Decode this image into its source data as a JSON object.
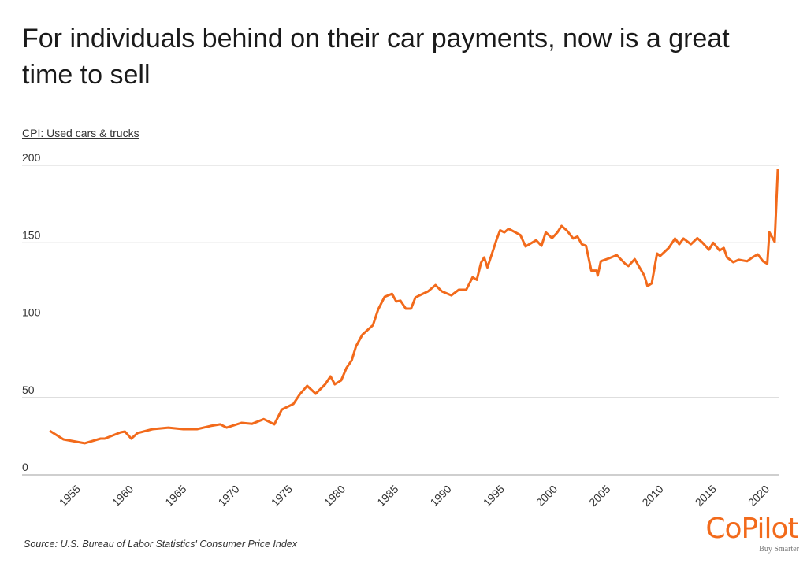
{
  "title": "For individuals behind on their car payments, now is a great time to sell",
  "source": "Source:  U.S. Bureau of Labor Statistics' Consumer Price Index",
  "logo": {
    "name": "CoPilot",
    "tagline": "Buy Smarter",
    "color": "#f26a1b"
  },
  "chart_data": {
    "type": "line",
    "title": "For individuals behind on their car payments, now is a great time to sell",
    "ylabel": "CPI: Used cars & trucks",
    "xlabel": "",
    "ylim": [
      0,
      200
    ],
    "yticks": [
      "0",
      "50",
      "100",
      "150",
      "200"
    ],
    "xticks": [
      "1955",
      "1960",
      "1965",
      "1970",
      "1975",
      "1980",
      "1985",
      "1990",
      "1995",
      "2000",
      "2005",
      "2010",
      "2015",
      "2020"
    ],
    "grid": true,
    "line_color": "#f26a1b",
    "series": [
      {
        "x": [
          1953.0,
          1954.3,
          1956.3,
          1957.8,
          1958.2,
          1959.7,
          1960.1,
          1960.7,
          1961.3,
          1962.7,
          1964.2,
          1965.6,
          1966.9,
          1968.2,
          1969.1,
          1969.7,
          1971.1,
          1972.1,
          1973.2,
          1974.2,
          1974.9,
          1976.0,
          1976.6,
          1977.3,
          1978.1,
          1979.0,
          1979.5,
          1979.9,
          1980.5,
          1981.0,
          1981.5,
          1981.9,
          1982.5,
          1983.5,
          1984.0,
          1984.6,
          1985.3,
          1985.7,
          1986.1,
          1986.6,
          1987.1,
          1987.5,
          1987.9,
          1988.7,
          1989.4,
          1990.0,
          1990.9,
          1991.6,
          1992.3,
          1992.9,
          1993.3,
          1993.7,
          1994.0,
          1994.3,
          1995.2,
          1995.5,
          1995.9,
          1996.3,
          1997.4,
          1997.9,
          1998.9,
          1999.4,
          1999.8,
          2000.4,
          2000.9,
          2001.3,
          2001.8,
          2002.4,
          2002.8,
          2003.2,
          2003.6,
          2004.1,
          2004.6,
          2004.7,
          2005.0,
          2005.8,
          2006.5,
          2007.3,
          2007.6,
          2008.2,
          2009.1,
          2009.4,
          2009.8,
          2010.3,
          2010.6,
          2011.4,
          2012.0,
          2012.4,
          2012.8,
          2013.5,
          2014.1,
          2014.6,
          2015.2,
          2015.6,
          2016.2,
          2016.6,
          2016.9,
          2017.5,
          2018.0,
          2018.8,
          2019.3,
          2019.8,
          2020.3,
          2020.7,
          2020.9,
          2021.4,
          2021.7
        ],
        "y": [
          28.5,
          22.9,
          20.4,
          23.4,
          23.4,
          27.5,
          28.0,
          23.4,
          27.0,
          29.5,
          30.5,
          29.5,
          29.5,
          31.6,
          32.6,
          30.5,
          33.6,
          33.0,
          36.0,
          32.6,
          42.2,
          45.8,
          52.0,
          57.5,
          52.4,
          58.5,
          63.6,
          58.5,
          61.0,
          69.0,
          74.0,
          83.0,
          90.6,
          96.7,
          106.9,
          115.0,
          117.0,
          112.0,
          112.5,
          107.4,
          107.4,
          114.5,
          116.0,
          118.6,
          122.6,
          118.6,
          116.0,
          119.6,
          119.6,
          127.7,
          126.0,
          137.0,
          140.5,
          134.0,
          152.7,
          158.0,
          156.7,
          159.0,
          155.0,
          147.6,
          151.6,
          148.0,
          156.7,
          153.0,
          156.7,
          160.8,
          157.8,
          152.7,
          154.0,
          149.0,
          148.0,
          132.0,
          132.0,
          128.8,
          138.0,
          140.0,
          142.0,
          136.4,
          134.9,
          139.4,
          128.8,
          122.0,
          123.7,
          143.0,
          141.5,
          146.6,
          152.7,
          149.0,
          152.7,
          149.0,
          153.0,
          150.0,
          145.5,
          150.0,
          145.0,
          146.6,
          140.5,
          137.4,
          139.0,
          138.0,
          140.5,
          142.5,
          138.0,
          136.4,
          156.7,
          150.6,
          197.5
        ]
      }
    ]
  }
}
